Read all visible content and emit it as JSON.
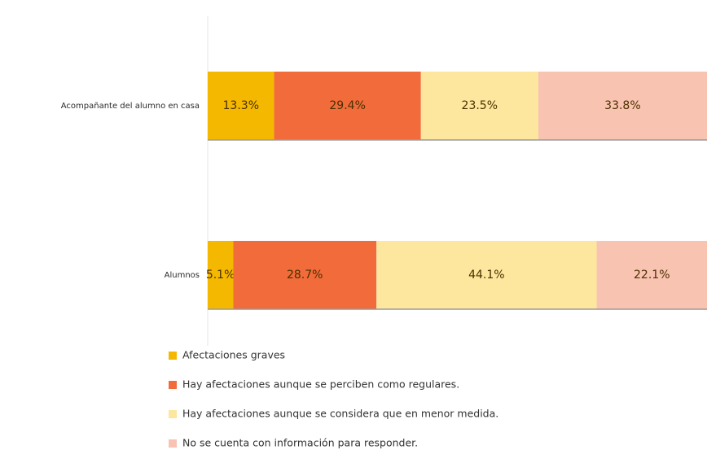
{
  "chart_data": {
    "type": "stacked-bar-horizontal",
    "categories": [
      "Acompañante del alumno en casa",
      "Alumnos"
    ],
    "xlim": [
      0,
      100
    ],
    "legend": "bottom-left",
    "series": [
      {
        "name": "Afectaciones graves",
        "color": "#f5b800",
        "values": [
          13.3,
          5.1
        ],
        "value_labels": [
          "13.3%",
          "5.1%"
        ]
      },
      {
        "name": "Hay afectaciones aunque se perciben como regulares.",
        "color": "#f26b3a",
        "values": [
          29.4,
          28.7
        ],
        "value_labels": [
          "29.4%",
          "28.7%"
        ]
      },
      {
        "name": "Hay afectaciones aunque se considera que en menor medida.",
        "color": "#fde79e",
        "values": [
          23.5,
          44.1
        ],
        "value_labels": [
          "23.5%",
          "44.1%"
        ]
      },
      {
        "name": "No se cuenta con información para responder.",
        "color": "#f9c3b1",
        "values": [
          33.8,
          22.1
        ],
        "value_labels": [
          "33.8%",
          "22.1%"
        ]
      }
    ]
  }
}
